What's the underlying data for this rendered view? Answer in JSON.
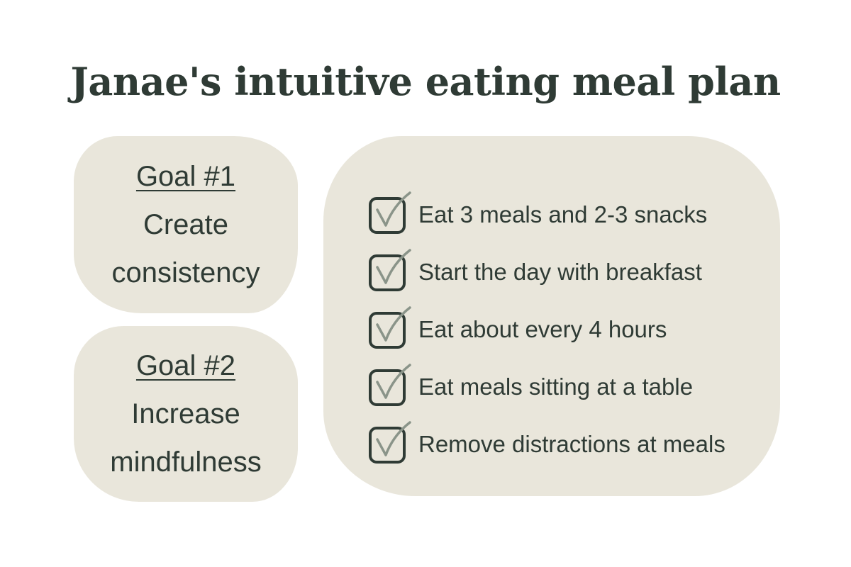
{
  "title": "Janae's intuitive eating meal plan",
  "goals": [
    {
      "heading": "Goal #1",
      "line1": "Create",
      "line2": "consistency"
    },
    {
      "heading": "Goal #2",
      "line1": "Increase",
      "line2": "mindfulness"
    }
  ],
  "checklist": [
    {
      "label": "Eat 3 meals and 2-3 snacks",
      "checked": true
    },
    {
      "label": "Start the day with breakfast",
      "checked": true
    },
    {
      "label": "Eat about every 4 hours",
      "checked": true
    },
    {
      "label": "Eat meals sitting at a table",
      "checked": true
    },
    {
      "label": "Remove distractions at meals",
      "checked": true
    }
  ],
  "icons": {
    "checkbox": "checked-box-icon"
  },
  "colors": {
    "text": "#2f3b35",
    "card_background": "#e9e6db",
    "check_mark": "#8a9489",
    "page_background": "#ffffff"
  }
}
